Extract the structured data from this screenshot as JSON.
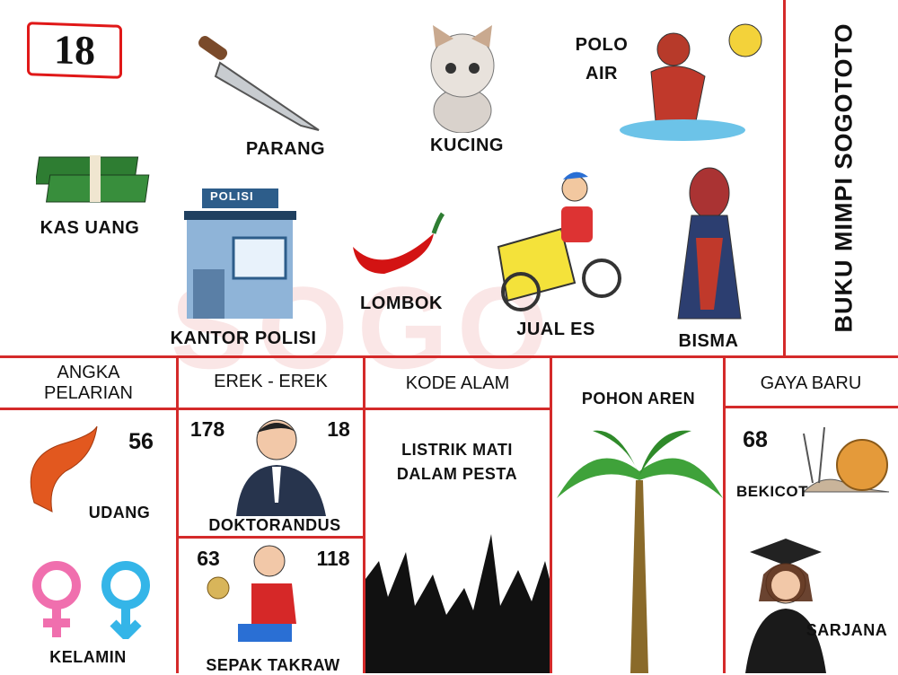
{
  "badge_number": "18",
  "side_title": "BUKU MIMPI SOGOTOTO",
  "watermark": "SOGO",
  "top_items": {
    "parang": "PARANG",
    "kucing": "KUCING",
    "polo_air_1": "POLO",
    "polo_air_2": "AIR",
    "kas_uang": "KAS UANG",
    "kantor_polisi": "KANTOR POLISI",
    "polisi_sign": "POLISI",
    "lombok": "LOMBOK",
    "jual_es": "JUAL ES",
    "bisma": "BISMA"
  },
  "angka_pelarian": {
    "header_1": "ANGKA",
    "header_2": "PELARIAN",
    "number": "56",
    "item": "UDANG",
    "item2": "KELAMIN"
  },
  "erek_erek": {
    "header": "EREK - EREK",
    "num_left": "178",
    "num_right": "18",
    "item": "DOKTORANDUS",
    "num_left_2": "63",
    "num_right_2": "118",
    "item2": "SEPAK TAKRAW"
  },
  "kode_alam": {
    "header": "KODE ALAM",
    "line1": "LISTRIK MATI",
    "line2": "DALAM PESTA"
  },
  "pohon_aren": {
    "header": "POHON AREN"
  },
  "gaya_baru": {
    "header": "GAYA BARU",
    "number": "68",
    "item": "BEKICOT",
    "item2": "SARJANA"
  },
  "colors": {
    "accent": "#d42a2a"
  }
}
